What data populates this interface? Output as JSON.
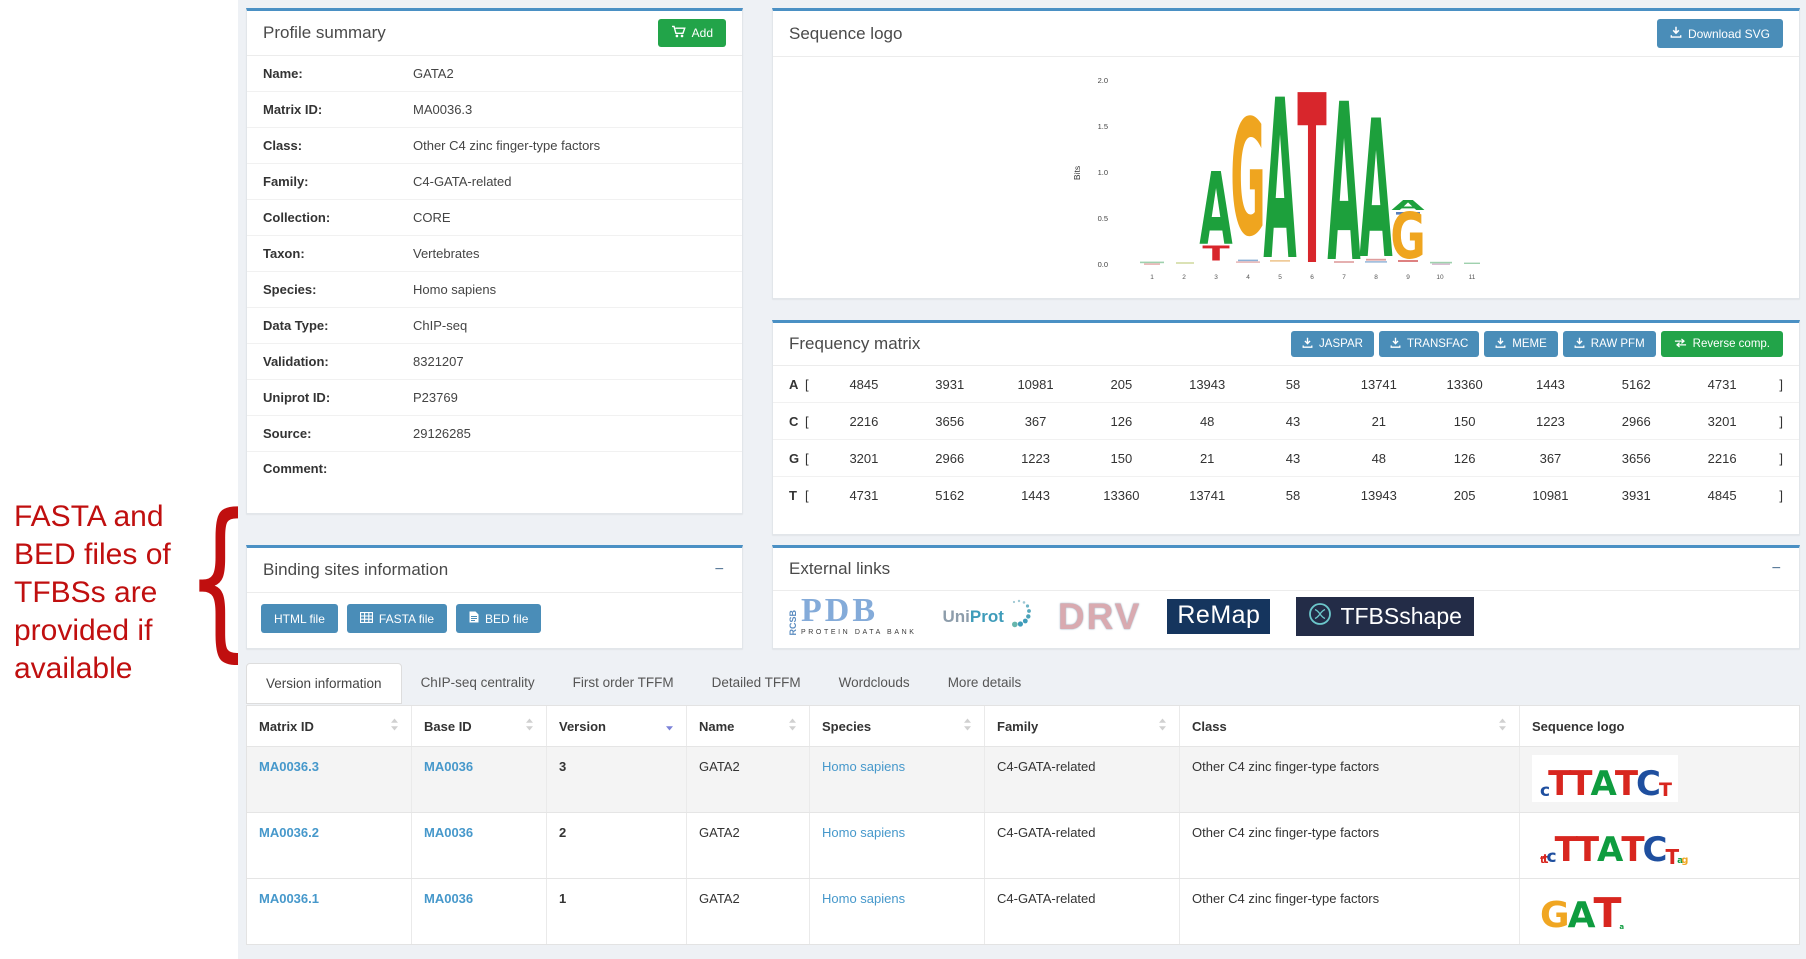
{
  "annotation": {
    "text": "FASTA and BED files of TFBSs are provided if available",
    "brace": "{",
    "color": "#c00f0f"
  },
  "profile_summary": {
    "title": "Profile summary",
    "add_button_label": "Add",
    "fields": [
      {
        "label": "Name:",
        "value": "GATA2"
      },
      {
        "label": "Matrix ID:",
        "value": "MA0036.3"
      },
      {
        "label": "Class:",
        "value": "Other C4 zinc finger-type factors"
      },
      {
        "label": "Family:",
        "value": "C4-GATA-related"
      },
      {
        "label": "Collection:",
        "value": "CORE"
      },
      {
        "label": "Taxon:",
        "value": "Vertebrates"
      },
      {
        "label": "Species:",
        "value": "Homo sapiens"
      },
      {
        "label": "Data Type:",
        "value": "ChIP-seq"
      },
      {
        "label": "Validation:",
        "value": "8321207"
      },
      {
        "label": "Uniprot ID:",
        "value": "P23769"
      },
      {
        "label": "Source:",
        "value": "29126285"
      },
      {
        "label": "Comment:",
        "value": ""
      }
    ]
  },
  "sequence_logo": {
    "title": "Sequence logo",
    "download_button_label": "Download SVG",
    "ylabel": "Bits",
    "yticks": [
      "2.0",
      "1.5",
      "1.0",
      "0.5",
      "0.0"
    ],
    "xticks": [
      "1",
      "2",
      "3",
      "4",
      "5",
      "6",
      "7",
      "8",
      "9",
      "10",
      "11"
    ],
    "big_letters": [
      "A",
      "G",
      "A",
      "T",
      "A",
      "A",
      "G"
    ],
    "small_letter_under_3": "T",
    "small_letter_over_9": "A"
  },
  "frequency_matrix": {
    "title": "Frequency matrix",
    "download_buttons": [
      "JASPAR",
      "TRANSFAC",
      "MEME",
      "RAW PFM"
    ],
    "reverse_button_label": "Reverse comp.",
    "bracket_open": "[",
    "bracket_close": "]",
    "rows": [
      {
        "base": "A",
        "values": [
          "4845",
          "3931",
          "10981",
          "205",
          "13943",
          "58",
          "13741",
          "13360",
          "1443",
          "5162",
          "4731"
        ]
      },
      {
        "base": "C",
        "values": [
          "2216",
          "3656",
          "367",
          "126",
          "48",
          "43",
          "21",
          "150",
          "1223",
          "2966",
          "3201"
        ]
      },
      {
        "base": "G",
        "values": [
          "3201",
          "2966",
          "1223",
          "150",
          "21",
          "43",
          "48",
          "126",
          "367",
          "3656",
          "2216"
        ]
      },
      {
        "base": "T",
        "values": [
          "4731",
          "5162",
          "1443",
          "13360",
          "13741",
          "58",
          "13943",
          "205",
          "10981",
          "3931",
          "4845"
        ]
      }
    ]
  },
  "binding_sites": {
    "title": "Binding sites information",
    "collapse_icon": "−",
    "buttons": [
      "HTML file",
      "FASTA file",
      "BED file"
    ]
  },
  "external_links": {
    "title": "External links",
    "collapse_icon": "−",
    "pdb": {
      "rcsb": "RCSB",
      "main": "PDB",
      "subtitle": "PROTEIN DATA BANK"
    },
    "uniprot": {
      "uni": "Uni",
      "prot": "Prot"
    },
    "drv": "DRV",
    "remap": "ReMap",
    "tfbsshape": "TFBSshape"
  },
  "tabs": [
    {
      "label": "Version information"
    },
    {
      "label": "ChIP-seq centrality"
    },
    {
      "label": "First order TFFM"
    },
    {
      "label": "Detailed TFFM"
    },
    {
      "label": "Wordclouds"
    },
    {
      "label": "More details"
    }
  ],
  "versions_table": {
    "columns": [
      "Matrix ID",
      "Base ID",
      "Version",
      "Name",
      "Species",
      "Family",
      "Class",
      "Sequence logo"
    ],
    "rows": [
      {
        "matrix_id": "MA0036.3",
        "base_id": "MA0036",
        "version": "3",
        "name": "GATA2",
        "species": "Homo sapiens",
        "family": "C4-GATA-related",
        "class": "Other C4 zinc finger-type factors",
        "logo": [
          [
            "c",
            0.5
          ],
          [
            "T",
            1
          ],
          [
            "T",
            1
          ],
          [
            "A",
            1
          ],
          [
            "T",
            1
          ],
          [
            "C",
            1
          ],
          [
            "T",
            0.55
          ]
        ]
      },
      {
        "matrix_id": "MA0036.2",
        "base_id": "MA0036",
        "version": "2",
        "name": "GATA2",
        "species": "Homo sapiens",
        "family": "C4-GATA-related",
        "class": "Other C4 zinc finger-type factors",
        "logo": [
          [
            "t",
            0.3
          ],
          [
            "t",
            0.35
          ],
          [
            "c",
            0.5
          ],
          [
            "T",
            1
          ],
          [
            "T",
            1
          ],
          [
            "A",
            1
          ],
          [
            "T",
            1
          ],
          [
            "C",
            1
          ],
          [
            "T",
            0.6
          ],
          [
            "a",
            0.25
          ],
          [
            "g",
            0.3
          ]
        ]
      },
      {
        "matrix_id": "MA0036.1",
        "base_id": "MA0036",
        "version": "1",
        "name": "GATA2",
        "species": "Homo sapiens",
        "family": "C4-GATA-related",
        "class": "Other C4 zinc finger-type factors",
        "logo": [
          [
            "G",
            1.05
          ],
          [
            "A",
            1.05
          ],
          [
            "T",
            1.2
          ],
          [
            "a",
            0.2
          ]
        ]
      }
    ]
  }
}
